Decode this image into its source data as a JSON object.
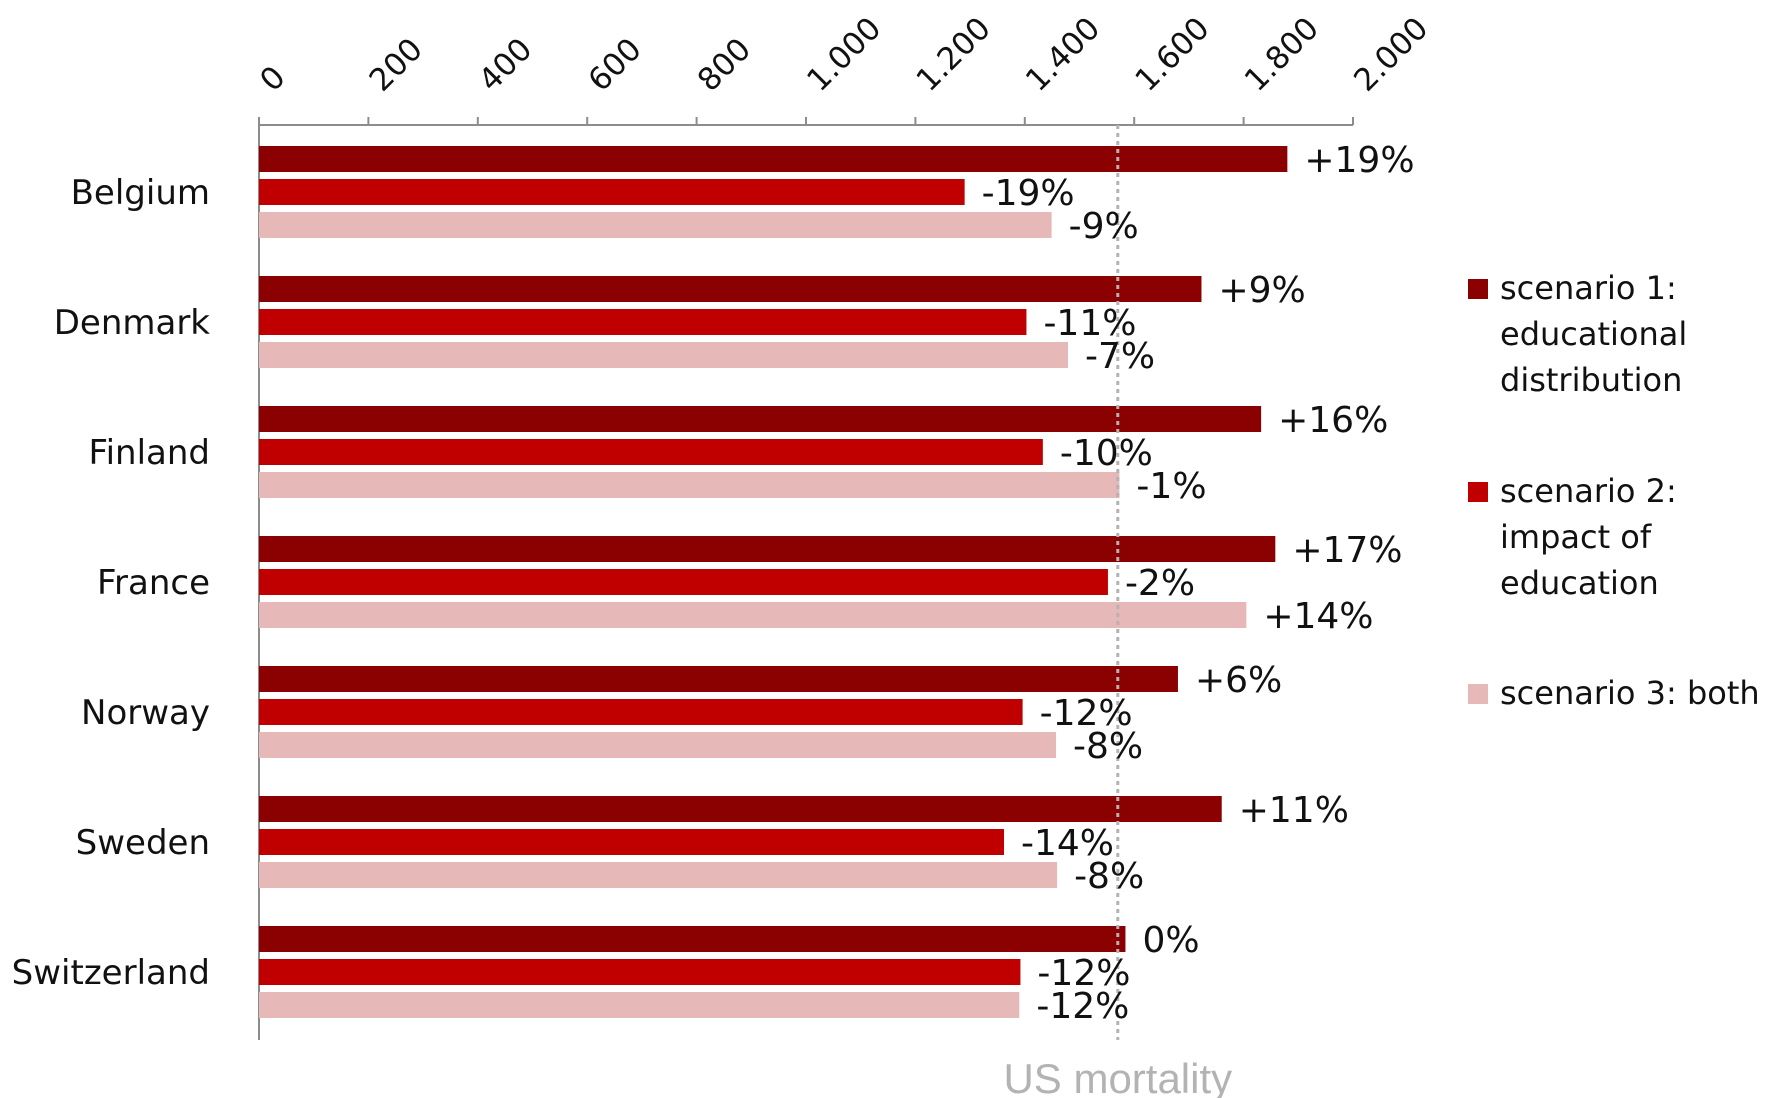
{
  "chart_data": {
    "type": "bar",
    "orientation": "horizontal",
    "categories": [
      "Belgium",
      "Denmark",
      "Finland",
      "France",
      "Norway",
      "Sweden",
      "Switzerland"
    ],
    "series": [
      {
        "name": "scenario 1: educational distribution",
        "legend_lines": [
          "scenario 1:",
          "educational",
          "distribution"
        ],
        "color": "#8b0000",
        "values": [
          1880,
          1723,
          1832,
          1858,
          1680,
          1760,
          1584
        ],
        "labels": [
          "+19%",
          "+9%",
          "+16%",
          "+17%",
          "+6%",
          "+11%",
          "0%"
        ]
      },
      {
        "name": "scenario 2: impact of education",
        "legend_lines": [
          "scenario 2:",
          "impact of",
          "education"
        ],
        "color": "#c00000",
        "values": [
          1290,
          1403,
          1433,
          1552,
          1396,
          1362,
          1392
        ],
        "labels": [
          "-19%",
          "-11%",
          "-10%",
          "-2%",
          "-12%",
          "-14%",
          "-12%"
        ]
      },
      {
        "name": "scenario 3: both",
        "legend_lines": [
          "scenario 3: both"
        ],
        "color": "#e6b8b7",
        "values": [
          1449,
          1479,
          1573,
          1805,
          1457,
          1459,
          1390
        ],
        "labels": [
          "-9%",
          "-7%",
          "-1%",
          "+14%",
          "-8%",
          "-8%",
          "-12%"
        ]
      }
    ],
    "x_ticks": [
      "0",
      "200",
      "400",
      "600",
      "800",
      "1.000",
      "1.200",
      "1.400",
      "1.600",
      "1.800",
      "2.000"
    ],
    "xlim": [
      0,
      2000
    ],
    "reference_line": {
      "value": 1570,
      "label": "US mortality",
      "color": "#b3b3b3"
    },
    "grid": false,
    "axis_position": "top",
    "legend_position": "right"
  }
}
